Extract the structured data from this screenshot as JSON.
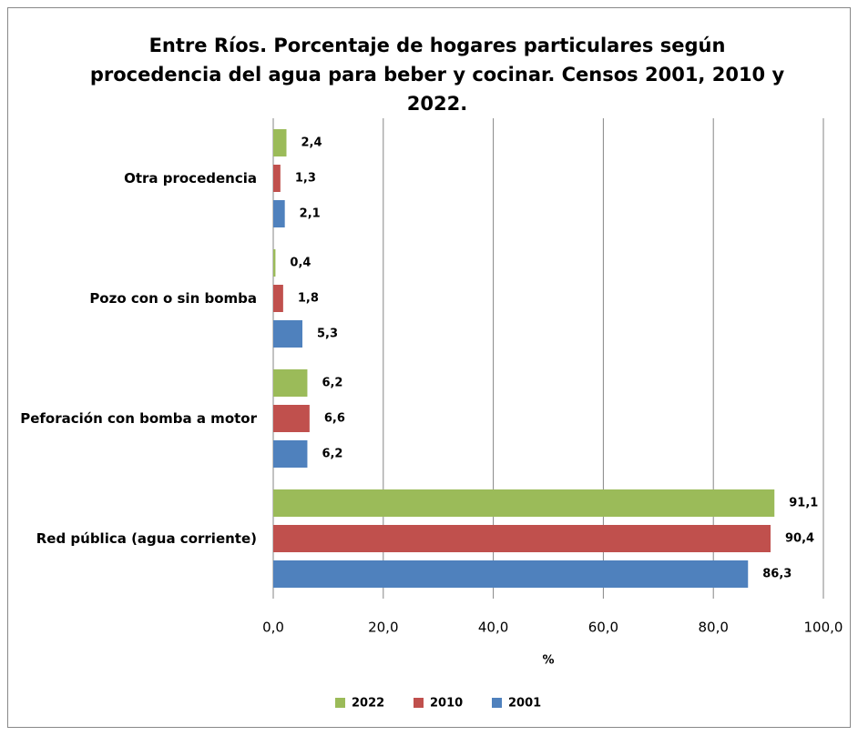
{
  "chart_data": {
    "type": "barh",
    "title": "Entre Ríos. Porcentaje de hogares particulares según procedencia del agua para beber y cocinar. Censos 2001, 2010 y 2022.",
    "categories": [
      "Otra procedencia",
      "Pozo con o sin bomba",
      "Peforación con bomba a motor",
      "Red pública (agua corriente)"
    ],
    "series": [
      {
        "name": "2022",
        "color": "#9bbb59",
        "values": [
          2.4,
          0.4,
          6.2,
          91.1
        ],
        "value_labels": [
          "2,4",
          "0,4",
          "6,2",
          "91,1"
        ]
      },
      {
        "name": "2010",
        "color": "#c0504d",
        "values": [
          1.3,
          1.8,
          6.6,
          90.4
        ],
        "value_labels": [
          "1,3",
          "1,8",
          "6,6",
          "90,4"
        ]
      },
      {
        "name": "2001",
        "color": "#4f81bd",
        "values": [
          2.1,
          5.3,
          6.2,
          86.3
        ],
        "value_labels": [
          "2,1",
          "5,3",
          "6,2",
          "86,3"
        ]
      }
    ],
    "xlabel": "%",
    "xlim": [
      0,
      100
    ],
    "xticks": [
      {
        "value": 0,
        "label": "0,0"
      },
      {
        "value": 20,
        "label": "20,0"
      },
      {
        "value": 40,
        "label": "40,0"
      },
      {
        "value": 60,
        "label": "60,0"
      },
      {
        "value": 80,
        "label": "80,0"
      },
      {
        "value": 100,
        "label": "100,0"
      }
    ],
    "grid": true,
    "legend": "bottom"
  }
}
